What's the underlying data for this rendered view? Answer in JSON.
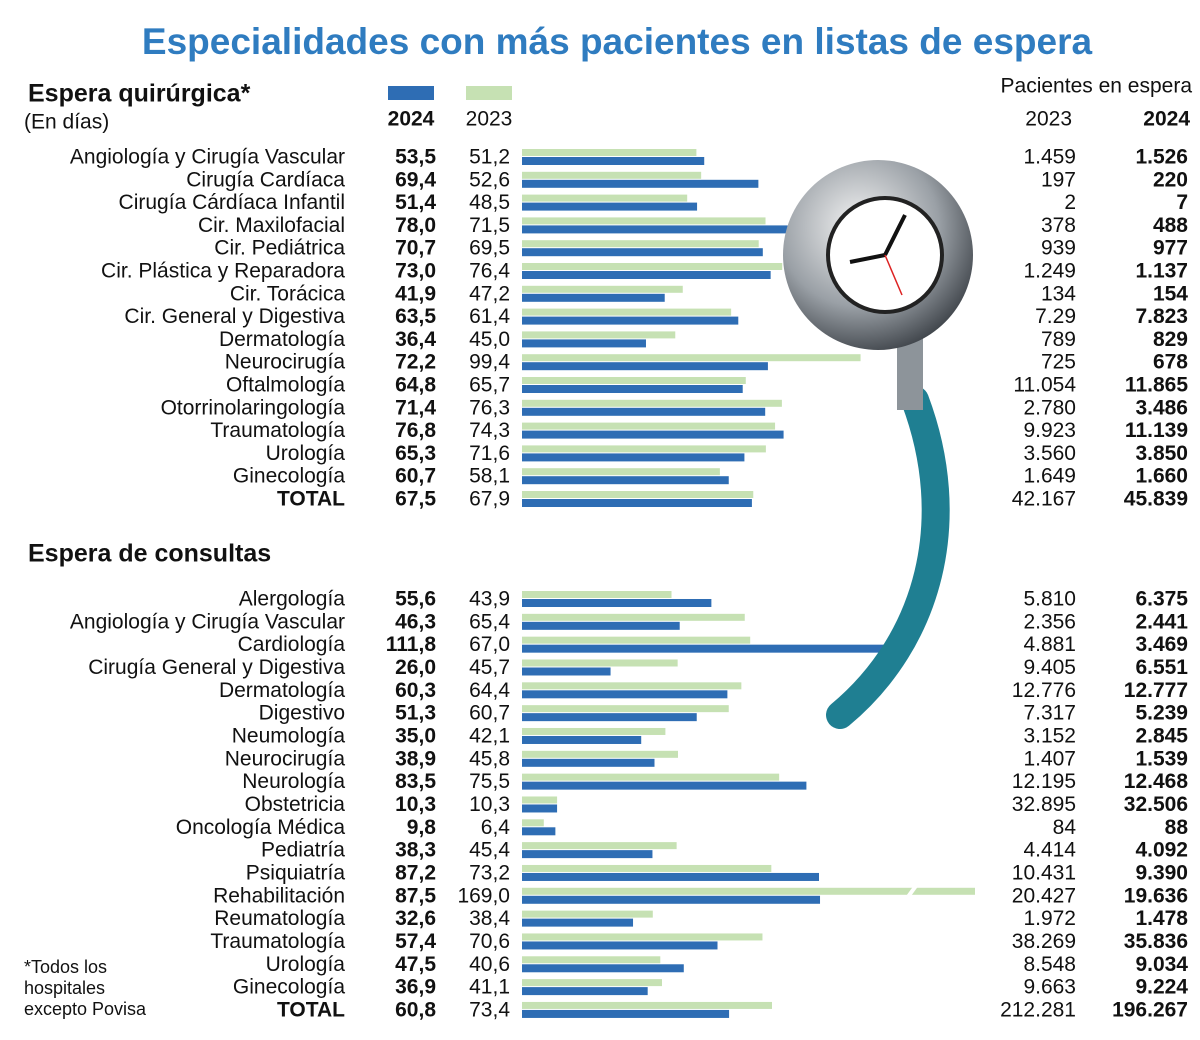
{
  "title": "Especialidades con más pacientes  en listas de espera",
  "chart_data": [
    {
      "type": "bar",
      "title": "Espera quirúrgica*",
      "subtitle": "(En días)",
      "categories": [
        "Angiología y Cirugía Vascular",
        "Cirugía Cardíaca",
        "Cirugía Cárdíaca Infantil",
        "Cir. Maxilofacial",
        "Cir. Pediátrica",
        "Cir. Plástica y Reparadora",
        "Cir. Torácica",
        "Cir. General y Digestiva",
        "Dermatología",
        "Neurocirugía",
        "Oftalmología",
        "Otorrinolaringología",
        "Traumatología",
        "Urología",
        "Ginecología",
        "TOTAL"
      ],
      "series": [
        {
          "name": "2024",
          "color": "#2e6db4",
          "values": [
            53.5,
            69.4,
            51.4,
            78.0,
            70.7,
            73.0,
            41.9,
            63.5,
            36.4,
            72.2,
            64.8,
            71.4,
            76.8,
            65.3,
            60.7,
            67.5
          ],
          "value_labels": [
            "53,5",
            "69,4",
            "51,4",
            "78,0",
            "70,7",
            "73,0",
            "41,9",
            "63,5",
            "36,4",
            "72,2",
            "64,8",
            "71,4",
            "76,8",
            "65,3",
            "60,7",
            "67,5"
          ]
        },
        {
          "name": "2023",
          "color": "#c6e1b3",
          "values": [
            51.2,
            52.6,
            48.5,
            71.5,
            69.5,
            76.4,
            47.2,
            61.4,
            45.0,
            99.4,
            65.7,
            76.3,
            74.3,
            71.6,
            58.1,
            67.9
          ],
          "value_labels": [
            "51,2",
            "52,6",
            "48,5",
            "71,5",
            "69,5",
            "76,4",
            "47,2",
            "61,4",
            "45,0",
            "99,4",
            "65,7",
            "76,3",
            "74,3",
            "71,6",
            "58,1",
            "67,9"
          ]
        }
      ],
      "xlim": [
        0,
        133
      ]
    },
    {
      "type": "bar",
      "title": "Espera de consultas",
      "categories": [
        "Alergología",
        "Angiología y Cirugía Vascular",
        "Cardiología",
        "Cirugía General y Digestiva",
        "Dermatología",
        "Digestivo",
        "Neumología",
        "Neurocirugía",
        "Neurología",
        "Obstetricia",
        "Oncología Médica",
        "Pediatría",
        "Psiquiatría",
        "Rehabilitación",
        "Reumatología",
        "Traumatología",
        "Urología",
        "Ginecología",
        "TOTAL"
      ],
      "series": [
        {
          "color": "#2e6db4",
          "values": [
            55.6,
            46.3,
            111.8,
            26.0,
            60.3,
            51.3,
            35.0,
            38.9,
            83.5,
            10.3,
            9.8,
            38.3,
            87.2,
            87.5,
            32.6,
            57.4,
            47.5,
            36.9,
            60.8
          ],
          "value_labels": [
            "55,6",
            "46,3",
            "111,8",
            "26,0",
            "60,3",
            "51,3",
            "35,0",
            "38,9",
            "83,5",
            "10,3",
            "9,8",
            "38,3",
            "87,2",
            "87,5",
            "32,6",
            "57,4",
            "47,5",
            "36,9",
            "60,8"
          ]
        },
        {
          "color": "#c6e1b3",
          "values": [
            43.9,
            65.4,
            67.0,
            45.7,
            64.4,
            60.7,
            42.1,
            45.8,
            75.5,
            10.3,
            6.4,
            45.4,
            73.2,
            169.0,
            38.4,
            70.6,
            40.6,
            41.1,
            73.4
          ],
          "value_labels": [
            "43,9",
            "65,4",
            "67,0",
            "45,7",
            "64,4",
            "60,7",
            "42,1",
            "45,8",
            "75,5",
            "10,3",
            "6,4",
            "45,4",
            "73,2",
            "169,0",
            "38,4",
            "70,6",
            "40,6",
            "41,1",
            "73,4"
          ]
        }
      ],
      "xlim": [
        0,
        133
      ]
    }
  ],
  "patients_table": {
    "title": "Pacientes en espera",
    "columns": [
      "2023",
      "2024"
    ],
    "sections": [
      [
        [
          "1.459",
          "1.526"
        ],
        [
          "197",
          "220"
        ],
        [
          "2",
          "7"
        ],
        [
          "378",
          "488"
        ],
        [
          "939",
          "977"
        ],
        [
          "1.249",
          "1.137"
        ],
        [
          "134",
          "154"
        ],
        [
          "7.29",
          "7.823"
        ],
        [
          "789",
          "829"
        ],
        [
          "725",
          "678"
        ],
        [
          "11.054",
          "11.865"
        ],
        [
          "2.780",
          "3.486"
        ],
        [
          "9.923",
          "11.139"
        ],
        [
          "3.560",
          "3.850"
        ],
        [
          "1.649",
          "1.660"
        ],
        [
          "42.167",
          "45.839"
        ]
      ],
      [
        [
          "5.810",
          "6.375"
        ],
        [
          "2.356",
          "2.441"
        ],
        [
          "4.881",
          "3.469"
        ],
        [
          "9.405",
          "6.551"
        ],
        [
          "12.776",
          "12.777"
        ],
        [
          "7.317",
          "5.239"
        ],
        [
          "3.152",
          "2.845"
        ],
        [
          "1.407",
          "1.539"
        ],
        [
          "12.195",
          "12.468"
        ],
        [
          "32.895",
          "32.506"
        ],
        [
          "84",
          "88"
        ],
        [
          "4.414",
          "4.092"
        ],
        [
          "10.431",
          "9.390"
        ],
        [
          "20.427",
          "19.636"
        ],
        [
          "1.972",
          "1.478"
        ],
        [
          "38.269",
          "35.836"
        ],
        [
          "8.548",
          "9.034"
        ],
        [
          "9.663",
          "9.224"
        ],
        [
          "212.281",
          "196.267"
        ]
      ]
    ]
  },
  "footnote": [
    "*Todos los",
    "hospitales",
    "excepto Povisa"
  ]
}
